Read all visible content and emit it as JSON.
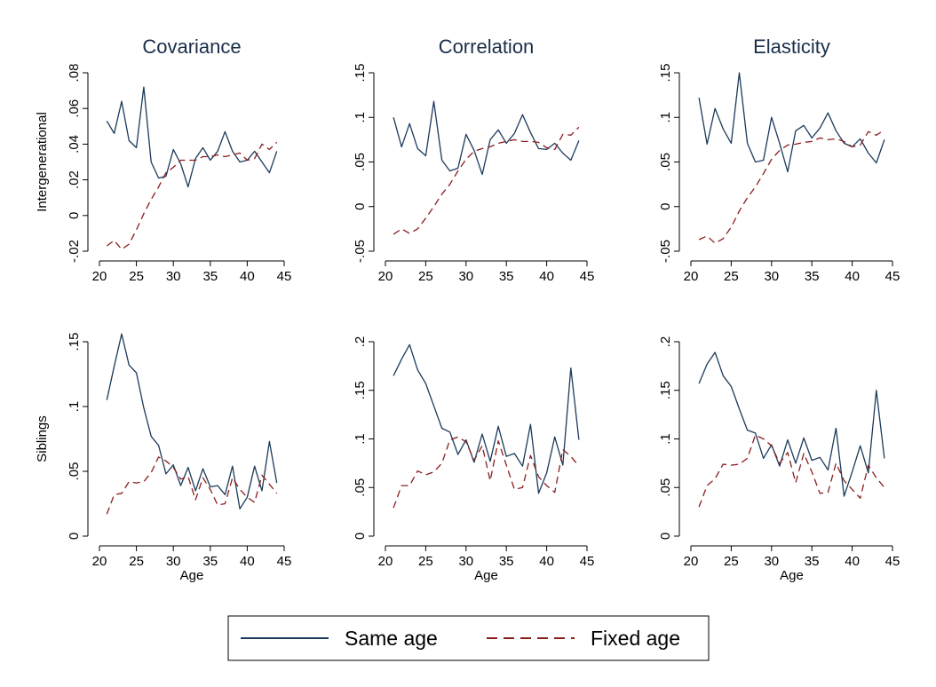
{
  "legend": {
    "same_label": "Same age",
    "fixed_label": "Fixed age"
  },
  "colors": {
    "same": "#1b3a5c",
    "fixed": "#8b1c1c"
  },
  "chart_data": [
    {
      "type": "line",
      "title": "Covariance",
      "ylabel": "Intergenerational",
      "xlabel": "",
      "x": [
        21,
        22,
        23,
        24,
        25,
        26,
        27,
        28,
        29,
        30,
        31,
        32,
        33,
        34,
        35,
        36,
        37,
        38,
        39,
        40,
        41,
        42,
        43,
        44
      ],
      "series": [
        {
          "name": "Same age",
          "values": [
            0.053,
            0.046,
            0.064,
            0.042,
            0.038,
            0.072,
            0.03,
            0.021,
            0.022,
            0.037,
            0.029,
            0.016,
            0.032,
            0.038,
            0.031,
            0.036,
            0.047,
            0.036,
            0.03,
            0.031,
            0.036,
            0.03,
            0.024,
            0.036
          ]
        },
        {
          "name": "Fixed age",
          "values": [
            -0.017,
            -0.014,
            -0.019,
            -0.016,
            -0.008,
            0.001,
            0.009,
            0.016,
            0.024,
            0.027,
            0.031,
            0.031,
            0.031,
            0.033,
            0.033,
            0.034,
            0.033,
            0.034,
            0.035,
            0.031,
            0.032,
            0.04,
            0.037,
            0.041
          ]
        }
      ],
      "xlim": [
        20,
        45
      ],
      "ylim": [
        -0.02,
        0.08
      ],
      "xticks": [
        20,
        25,
        30,
        35,
        40,
        45
      ],
      "xtick_labels": [
        "20",
        "25",
        "30",
        "35",
        "40",
        "45"
      ],
      "yticks": [
        -0.02,
        0,
        0.02,
        0.04,
        0.06,
        0.08
      ],
      "ytick_labels": [
        "-.02",
        "0",
        ".02",
        ".04",
        ".06",
        ".08"
      ]
    },
    {
      "type": "line",
      "title": "Correlation",
      "ylabel": "",
      "xlabel": "",
      "x": [
        21,
        22,
        23,
        24,
        25,
        26,
        27,
        28,
        29,
        30,
        31,
        32,
        33,
        34,
        35,
        36,
        37,
        38,
        39,
        40,
        41,
        42,
        43,
        44
      ],
      "series": [
        {
          "name": "Same age",
          "values": [
            0.1,
            0.067,
            0.093,
            0.065,
            0.057,
            0.118,
            0.052,
            0.04,
            0.043,
            0.081,
            0.063,
            0.036,
            0.075,
            0.086,
            0.071,
            0.082,
            0.103,
            0.083,
            0.065,
            0.064,
            0.071,
            0.06,
            0.052,
            0.074
          ]
        },
        {
          "name": "Fixed age",
          "values": [
            -0.031,
            -0.025,
            -0.03,
            -0.025,
            -0.013,
            0.0,
            0.014,
            0.025,
            0.04,
            0.053,
            0.062,
            0.065,
            0.067,
            0.071,
            0.073,
            0.075,
            0.073,
            0.073,
            0.072,
            0.066,
            0.064,
            0.081,
            0.08,
            0.089
          ]
        }
      ],
      "xlim": [
        20,
        45
      ],
      "ylim": [
        -0.05,
        0.15
      ],
      "xticks": [
        20,
        25,
        30,
        35,
        40,
        45
      ],
      "xtick_labels": [
        "20",
        "25",
        "30",
        "35",
        "40",
        "45"
      ],
      "yticks": [
        -0.05,
        0,
        0.05,
        0.1,
        0.15
      ],
      "ytick_labels": [
        "-.05",
        "0",
        ".05",
        ".1",
        ".15"
      ]
    },
    {
      "type": "line",
      "title": "Elasticity",
      "ylabel": "",
      "xlabel": "",
      "x": [
        21,
        22,
        23,
        24,
        25,
        26,
        27,
        28,
        29,
        30,
        31,
        32,
        33,
        34,
        35,
        36,
        37,
        38,
        39,
        40,
        41,
        42,
        43,
        44
      ],
      "series": [
        {
          "name": "Same age",
          "values": [
            0.122,
            0.07,
            0.11,
            0.087,
            0.071,
            0.15,
            0.071,
            0.05,
            0.052,
            0.1,
            0.071,
            0.039,
            0.085,
            0.091,
            0.077,
            0.088,
            0.105,
            0.085,
            0.071,
            0.067,
            0.076,
            0.06,
            0.049,
            0.075
          ]
        },
        {
          "name": "Fixed age",
          "values": [
            -0.037,
            -0.033,
            -0.041,
            -0.036,
            -0.023,
            -0.005,
            0.01,
            0.022,
            0.037,
            0.053,
            0.063,
            0.069,
            0.07,
            0.072,
            0.073,
            0.077,
            0.075,
            0.076,
            0.073,
            0.067,
            0.069,
            0.084,
            0.08,
            0.086
          ]
        }
      ],
      "xlim": [
        20,
        45
      ],
      "ylim": [
        -0.05,
        0.15
      ],
      "xticks": [
        20,
        25,
        30,
        35,
        40,
        45
      ],
      "xtick_labels": [
        "20",
        "25",
        "30",
        "35",
        "40",
        "45"
      ],
      "yticks": [
        -0.05,
        0,
        0.05,
        0.1,
        0.15
      ],
      "ytick_labels": [
        "-.05",
        "0",
        ".05",
        ".1",
        ".15"
      ]
    },
    {
      "type": "line",
      "title": "",
      "ylabel": "Siblings",
      "xlabel": "Age",
      "x": [
        21,
        22,
        23,
        24,
        25,
        26,
        27,
        28,
        29,
        30,
        31,
        32,
        33,
        34,
        35,
        36,
        37,
        38,
        39,
        40,
        41,
        42,
        43,
        44
      ],
      "series": [
        {
          "name": "Same age",
          "values": [
            0.105,
            0.131,
            0.156,
            0.132,
            0.126,
            0.099,
            0.077,
            0.07,
            0.048,
            0.055,
            0.039,
            0.053,
            0.035,
            0.052,
            0.038,
            0.039,
            0.032,
            0.054,
            0.021,
            0.03,
            0.054,
            0.035,
            0.073,
            0.041
          ]
        },
        {
          "name": "Fixed age",
          "values": [
            0.017,
            0.032,
            0.033,
            0.042,
            0.041,
            0.042,
            0.049,
            0.061,
            0.058,
            0.053,
            0.044,
            0.046,
            0.028,
            0.045,
            0.036,
            0.024,
            0.025,
            0.045,
            0.036,
            0.03,
            0.026,
            0.047,
            0.04,
            0.033
          ]
        }
      ],
      "xlim": [
        20,
        45
      ],
      "ylim": [
        0,
        0.15
      ],
      "xticks": [
        20,
        25,
        30,
        35,
        40,
        45
      ],
      "xtick_labels": [
        "20",
        "25",
        "30",
        "35",
        "40",
        "45"
      ],
      "yticks": [
        0,
        0.05,
        0.1,
        0.15
      ],
      "ytick_labels": [
        "0",
        ".05",
        ".1",
        ".15"
      ]
    },
    {
      "type": "line",
      "title": "",
      "ylabel": "",
      "xlabel": "Age",
      "x": [
        21,
        22,
        23,
        24,
        25,
        26,
        27,
        28,
        29,
        30,
        31,
        32,
        33,
        34,
        35,
        36,
        37,
        38,
        39,
        40,
        41,
        42,
        43,
        44
      ],
      "series": [
        {
          "name": "Same age",
          "values": [
            0.165,
            0.182,
            0.197,
            0.171,
            0.157,
            0.134,
            0.111,
            0.107,
            0.084,
            0.099,
            0.076,
            0.105,
            0.077,
            0.113,
            0.082,
            0.085,
            0.072,
            0.115,
            0.044,
            0.065,
            0.102,
            0.073,
            0.173,
            0.099
          ]
        },
        {
          "name": "Fixed age",
          "values": [
            0.029,
            0.052,
            0.052,
            0.067,
            0.063,
            0.066,
            0.075,
            0.099,
            0.102,
            0.097,
            0.078,
            0.093,
            0.057,
            0.098,
            0.073,
            0.048,
            0.05,
            0.083,
            0.061,
            0.052,
            0.045,
            0.089,
            0.082,
            0.072
          ]
        }
      ],
      "xlim": [
        20,
        45
      ],
      "ylim": [
        0,
        0.2
      ],
      "xticks": [
        20,
        25,
        30,
        35,
        40,
        45
      ],
      "xtick_labels": [
        "20",
        "25",
        "30",
        "35",
        "40",
        "45"
      ],
      "yticks": [
        0,
        0.05,
        0.1,
        0.15,
        0.2
      ],
      "ytick_labels": [
        "0",
        ".05",
        ".1",
        ".15",
        ".2"
      ]
    },
    {
      "type": "line",
      "title": "",
      "ylabel": "",
      "xlabel": "Age",
      "x": [
        21,
        22,
        23,
        24,
        25,
        26,
        27,
        28,
        29,
        30,
        31,
        32,
        33,
        34,
        35,
        36,
        37,
        38,
        39,
        40,
        41,
        42,
        43,
        44
      ],
      "series": [
        {
          "name": "Same age",
          "values": [
            0.157,
            0.177,
            0.189,
            0.165,
            0.154,
            0.131,
            0.109,
            0.106,
            0.08,
            0.094,
            0.072,
            0.099,
            0.075,
            0.101,
            0.078,
            0.081,
            0.068,
            0.111,
            0.041,
            0.066,
            0.093,
            0.065,
            0.15,
            0.08
          ]
        },
        {
          "name": "Fixed age",
          "values": [
            0.03,
            0.052,
            0.059,
            0.074,
            0.073,
            0.074,
            0.08,
            0.104,
            0.1,
            0.093,
            0.075,
            0.086,
            0.055,
            0.085,
            0.066,
            0.044,
            0.045,
            0.075,
            0.057,
            0.048,
            0.039,
            0.073,
            0.06,
            0.05
          ]
        }
      ],
      "xlim": [
        20,
        45
      ],
      "ylim": [
        0,
        0.2
      ],
      "xticks": [
        20,
        25,
        30,
        35,
        40,
        45
      ],
      "xtick_labels": [
        "20",
        "25",
        "30",
        "35",
        "40",
        "45"
      ],
      "yticks": [
        0,
        0.05,
        0.1,
        0.15,
        0.2
      ],
      "ytick_labels": [
        "0",
        ".05",
        ".1",
        ".15",
        ".2"
      ]
    }
  ]
}
